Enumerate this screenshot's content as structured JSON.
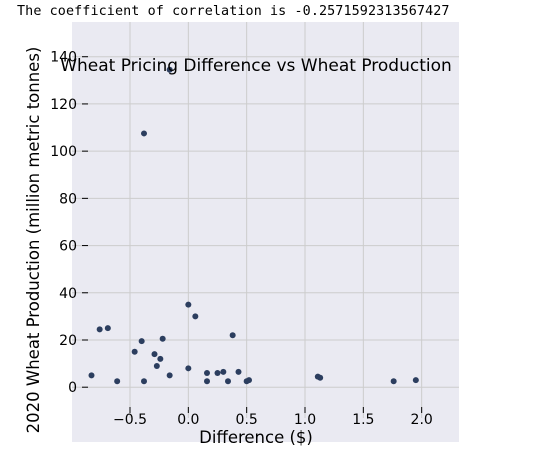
{
  "output_text": "The coefficient of correlation is -0.2571592313567427",
  "chart_data": {
    "type": "scatter",
    "title": "Wheat Pricing Difference vs Wheat Production",
    "xlabel": "Difference ($)",
    "ylabel": "2020 Wheat Production (million metric tonnes)",
    "xlim": [
      -0.92,
      2.08
    ],
    "ylim": [
      -5,
      142
    ],
    "xticks": [
      -0.5,
      0.0,
      0.5,
      1.0,
      1.5,
      2.0
    ],
    "xtick_labels": [
      "−0.5",
      "0.0",
      "0.5",
      "1.0",
      "1.5",
      "2.0"
    ],
    "yticks": [
      0,
      20,
      40,
      60,
      80,
      100,
      120,
      140
    ],
    "ytick_labels": [
      "0",
      "20",
      "40",
      "60",
      "80",
      "100",
      "120",
      "140"
    ],
    "grid": true,
    "background_color": "#eaeaf2",
    "grid_color": "#cccccc",
    "point_color": "#2c3e5f",
    "points": [
      {
        "x": -0.83,
        "y": 5
      },
      {
        "x": -0.76,
        "y": 24.5
      },
      {
        "x": -0.69,
        "y": 25
      },
      {
        "x": -0.61,
        "y": 2.5
      },
      {
        "x": -0.46,
        "y": 15
      },
      {
        "x": -0.4,
        "y": 19.5
      },
      {
        "x": -0.38,
        "y": 107.5
      },
      {
        "x": -0.38,
        "y": 2.5
      },
      {
        "x": -0.29,
        "y": 14
      },
      {
        "x": -0.27,
        "y": 9
      },
      {
        "x": -0.24,
        "y": 12
      },
      {
        "x": -0.22,
        "y": 20.5
      },
      {
        "x": -0.16,
        "y": 134.5
      },
      {
        "x": -0.16,
        "y": 5
      },
      {
        "x": 0.0,
        "y": 35
      },
      {
        "x": 0.0,
        "y": 8
      },
      {
        "x": 0.06,
        "y": 30
      },
      {
        "x": 0.16,
        "y": 6
      },
      {
        "x": 0.16,
        "y": 2.5
      },
      {
        "x": 0.25,
        "y": 6
      },
      {
        "x": 0.3,
        "y": 6.5
      },
      {
        "x": 0.34,
        "y": 2.5
      },
      {
        "x": 0.38,
        "y": 22
      },
      {
        "x": 0.43,
        "y": 6.5
      },
      {
        "x": 0.5,
        "y": 2.5
      },
      {
        "x": 0.52,
        "y": 3
      },
      {
        "x": 1.11,
        "y": 4.5
      },
      {
        "x": 1.13,
        "y": 4
      },
      {
        "x": 1.76,
        "y": 2.5
      },
      {
        "x": 1.95,
        "y": 3
      }
    ]
  }
}
